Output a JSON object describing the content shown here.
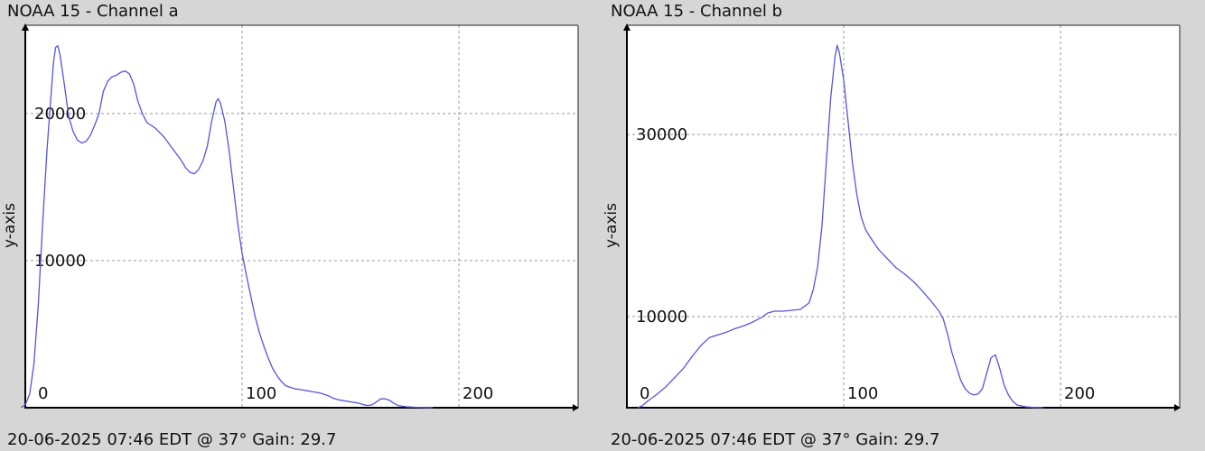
{
  "charts": [
    {
      "title": "NOAA 15 - Channel a",
      "footer": "20-06-2025 07:46 EDT @ 37° Gain: 29.7"
    },
    {
      "title": "NOAA 15 - Channel b",
      "footer": "20-06-2025 07:46 EDT @ 37° Gain: 29.7"
    }
  ],
  "chart_data": [
    {
      "type": "line",
      "title": "NOAA 15 - Channel a",
      "ylabel": "y-axis",
      "xlabel": "",
      "xlim": [
        0,
        255
      ],
      "ylim": [
        0,
        26000
      ],
      "x_ticks": [
        0,
        100,
        200
      ],
      "y_ticks": [
        10000,
        20000
      ],
      "grid": true,
      "line_color": "#5555dd",
      "series": [
        {
          "points": [
            [
              -2,
              0
            ],
            [
              0,
              200
            ],
            [
              2,
              900
            ],
            [
              4,
              3000
            ],
            [
              6,
              7000
            ],
            [
              8,
              12500
            ],
            [
              10,
              17500
            ],
            [
              12,
              21500
            ],
            [
              13,
              23500
            ],
            [
              14,
              24500
            ],
            [
              15,
              24600
            ],
            [
              16,
              24000
            ],
            [
              18,
              22000
            ],
            [
              20,
              19800
            ],
            [
              22,
              18800
            ],
            [
              24,
              18200
            ],
            [
              26,
              18000
            ],
            [
              28,
              18100
            ],
            [
              30,
              18500
            ],
            [
              32,
              19200
            ],
            [
              34,
              20000
            ],
            [
              36,
              21500
            ],
            [
              38,
              22200
            ],
            [
              40,
              22500
            ],
            [
              42,
              22600
            ],
            [
              44,
              22800
            ],
            [
              46,
              22900
            ],
            [
              48,
              22700
            ],
            [
              50,
              22000
            ],
            [
              52,
              20800
            ],
            [
              54,
              20000
            ],
            [
              56,
              19400
            ],
            [
              58,
              19200
            ],
            [
              60,
              19000
            ],
            [
              62,
              18700
            ],
            [
              64,
              18400
            ],
            [
              66,
              18000
            ],
            [
              68,
              17600
            ],
            [
              70,
              17200
            ],
            [
              72,
              16800
            ],
            [
              74,
              16300
            ],
            [
              76,
              16000
            ],
            [
              78,
              15900
            ],
            [
              80,
              16200
            ],
            [
              82,
              16800
            ],
            [
              84,
              17800
            ],
            [
              86,
              19500
            ],
            [
              88,
              20800
            ],
            [
              89,
              21000
            ],
            [
              90,
              20700
            ],
            [
              92,
              19500
            ],
            [
              94,
              17500
            ],
            [
              96,
              15000
            ],
            [
              98,
              12500
            ],
            [
              100,
              10500
            ],
            [
              102,
              9000
            ],
            [
              104,
              7600
            ],
            [
              106,
              6200
            ],
            [
              108,
              5100
            ],
            [
              110,
              4200
            ],
            [
              112,
              3400
            ],
            [
              114,
              2700
            ],
            [
              116,
              2200
            ],
            [
              118,
              1800
            ],
            [
              120,
              1500
            ],
            [
              122,
              1400
            ],
            [
              124,
              1300
            ],
            [
              126,
              1250
            ],
            [
              128,
              1200
            ],
            [
              130,
              1150
            ],
            [
              132,
              1100
            ],
            [
              134,
              1050
            ],
            [
              136,
              1000
            ],
            [
              138,
              900
            ],
            [
              140,
              800
            ],
            [
              142,
              650
            ],
            [
              144,
              550
            ],
            [
              146,
              500
            ],
            [
              148,
              450
            ],
            [
              150,
              400
            ],
            [
              152,
              350
            ],
            [
              154,
              300
            ],
            [
              156,
              200
            ],
            [
              158,
              150
            ],
            [
              160,
              200
            ],
            [
              162,
              400
            ],
            [
              164,
              600
            ],
            [
              166,
              600
            ],
            [
              168,
              500
            ],
            [
              170,
              300
            ],
            [
              172,
              150
            ],
            [
              174,
              100
            ],
            [
              176,
              60
            ],
            [
              180,
              30
            ],
            [
              184,
              20
            ],
            [
              188,
              10
            ]
          ]
        }
      ]
    },
    {
      "type": "line",
      "title": "NOAA 15 - Channel b",
      "ylabel": "y-axis",
      "xlabel": "",
      "xlim": [
        0,
        255
      ],
      "ylim": [
        0,
        42000
      ],
      "x_ticks": [
        0,
        100,
        200
      ],
      "y_ticks": [
        10000,
        30000
      ],
      "grid": true,
      "line_color": "#5555dd",
      "series": [
        {
          "points": [
            [
              5,
              0
            ],
            [
              7,
              200
            ],
            [
              10,
              800
            ],
            [
              14,
              1500
            ],
            [
              18,
              2300
            ],
            [
              22,
              3300
            ],
            [
              26,
              4300
            ],
            [
              30,
              5600
            ],
            [
              34,
              6800
            ],
            [
              38,
              7700
            ],
            [
              42,
              8000
            ],
            [
              46,
              8300
            ],
            [
              50,
              8700
            ],
            [
              54,
              9000
            ],
            [
              58,
              9400
            ],
            [
              62,
              9900
            ],
            [
              65,
              10400
            ],
            [
              68,
              10600
            ],
            [
              72,
              10600
            ],
            [
              76,
              10700
            ],
            [
              80,
              10800
            ],
            [
              84,
              11500
            ],
            [
              86,
              13000
            ],
            [
              88,
              15500
            ],
            [
              90,
              20000
            ],
            [
              92,
              27000
            ],
            [
              94,
              34000
            ],
            [
              96,
              38500
            ],
            [
              97,
              39800
            ],
            [
              98,
              39000
            ],
            [
              100,
              36000
            ],
            [
              102,
              31500
            ],
            [
              104,
              27000
            ],
            [
              106,
              23500
            ],
            [
              108,
              21000
            ],
            [
              110,
              19600
            ],
            [
              112,
              18800
            ],
            [
              116,
              17400
            ],
            [
              120,
              16400
            ],
            [
              124,
              15400
            ],
            [
              128,
              14700
            ],
            [
              132,
              13900
            ],
            [
              136,
              12900
            ],
            [
              140,
              11800
            ],
            [
              144,
              10600
            ],
            [
              146,
              9700
            ],
            [
              148,
              8000
            ],
            [
              150,
              6000
            ],
            [
              152,
              4500
            ],
            [
              154,
              3000
            ],
            [
              156,
              2100
            ],
            [
              158,
              1600
            ],
            [
              160,
              1400
            ],
            [
              162,
              1500
            ],
            [
              164,
              2100
            ],
            [
              166,
              3800
            ],
            [
              168,
              5500
            ],
            [
              170,
              5800
            ],
            [
              172,
              4300
            ],
            [
              174,
              2500
            ],
            [
              176,
              1400
            ],
            [
              178,
              700
            ],
            [
              180,
              300
            ],
            [
              184,
              100
            ],
            [
              188,
              30
            ],
            [
              192,
              10
            ]
          ]
        }
      ]
    }
  ]
}
